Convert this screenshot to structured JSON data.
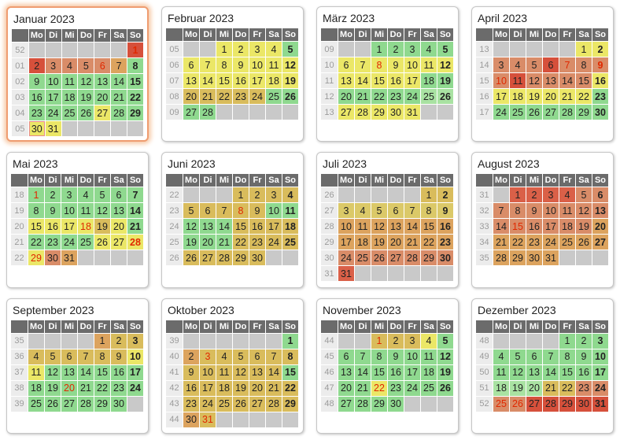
{
  "palette": {
    "g": "#8FD98F",
    "lg": "#A9E2A2",
    "y": "#EBE767",
    "yg": "#DBC968",
    "dy": "#D9BC5C",
    "o": "#DCA35E",
    "do": "#D98C68",
    "r2": "#DA6048",
    "r": "#D6503B",
    "empty_cell": "#C9C9C9",
    "header_bg": "#6B6B6B",
    "week_col_bg": "#ECECEC",
    "week_num_text": "#9B9B9B",
    "day_text": "#222222",
    "holiday_text": "#E02800",
    "highlight_border": "#EF9C70",
    "highlight_glow": "#F7CBA9",
    "today_border": "#E98A8A"
  },
  "day_headers": [
    "Mo",
    "Di",
    "Mi",
    "Do",
    "Fr",
    "Sa",
    "So"
  ],
  "months": [
    {
      "title": "Januar 2023",
      "highlight": true,
      "weeks": [
        {
          "num": "52",
          "days": [
            null,
            null,
            null,
            null,
            null,
            null,
            "1:r:h"
          ]
        },
        {
          "num": "01",
          "days": [
            "2:r",
            "3:do",
            "4:do",
            "5:do",
            "6:do:h",
            "7:o",
            "8:g"
          ]
        },
        {
          "num": "02",
          "days": [
            "9:g",
            "10:g",
            "11:g",
            "12:g",
            "13:g",
            "14:g",
            "15:g"
          ]
        },
        {
          "num": "03",
          "days": [
            "16:g",
            "17:g",
            "18:g",
            "19:g",
            "20:g",
            "21:g",
            "22:g"
          ]
        },
        {
          "num": "04",
          "days": [
            "23:g",
            "24:g",
            "25:g",
            "26:g",
            "27:y",
            "28:g",
            "29:g"
          ]
        },
        {
          "num": "05",
          "days": [
            "30:y:t",
            "31:y",
            null,
            null,
            null,
            null,
            null
          ]
        }
      ]
    },
    {
      "title": "Februar 2023",
      "highlight": false,
      "weeks": [
        {
          "num": "05",
          "days": [
            null,
            null,
            "1:y",
            "2:y",
            "3:y",
            "4:y",
            "5:g"
          ]
        },
        {
          "num": "06",
          "days": [
            "6:y",
            "7:y",
            "8:y",
            "9:y",
            "10:y",
            "11:y",
            "12:y"
          ]
        },
        {
          "num": "07",
          "days": [
            "13:y",
            "14:y",
            "15:y",
            "16:y",
            "17:y",
            "18:y",
            "19:y"
          ]
        },
        {
          "num": "08",
          "days": [
            "20:dy",
            "21:dy",
            "22:dy",
            "23:dy",
            "24:dy",
            "25:g",
            "26:g"
          ]
        },
        {
          "num": "09",
          "days": [
            "27:g",
            "28:g",
            null,
            null,
            null,
            null,
            null
          ]
        }
      ]
    },
    {
      "title": "März 2023",
      "highlight": false,
      "weeks": [
        {
          "num": "09",
          "days": [
            null,
            null,
            "1:g",
            "2:g",
            "3:g",
            "4:g",
            "5:g"
          ]
        },
        {
          "num": "10",
          "days": [
            "6:y",
            "7:y",
            "8:y:h",
            "9:y",
            "10:y",
            "11:y",
            "12:y"
          ]
        },
        {
          "num": "11",
          "days": [
            "13:y",
            "14:y",
            "15:y",
            "16:y",
            "17:y",
            "18:g",
            "19:g"
          ]
        },
        {
          "num": "12",
          "days": [
            "20:g",
            "21:g",
            "22:g",
            "23:g",
            "24:g",
            "25:lg",
            "26:lg"
          ]
        },
        {
          "num": "13",
          "days": [
            "27:y",
            "28:y",
            "29:y",
            "30:y",
            "31:y",
            null,
            null
          ]
        }
      ]
    },
    {
      "title": "April 2023",
      "highlight": false,
      "weeks": [
        {
          "num": "13",
          "days": [
            null,
            null,
            null,
            null,
            null,
            "1:y",
            "2:y"
          ]
        },
        {
          "num": "14",
          "days": [
            "3:do",
            "4:do",
            "5:do",
            "6:r",
            "7:do:h",
            "8:do",
            "9:do:h"
          ]
        },
        {
          "num": "15",
          "days": [
            "10:do:h",
            "11:r",
            "12:do",
            "13:do",
            "14:do",
            "15:do",
            "16:y"
          ]
        },
        {
          "num": "16",
          "days": [
            "17:y",
            "18:y",
            "19:y",
            "20:y",
            "21:y",
            "22:y",
            "23:g"
          ]
        },
        {
          "num": "17",
          "days": [
            "24:g",
            "25:g",
            "26:g",
            "27:g",
            "28:g",
            "29:g",
            "30:g"
          ]
        }
      ]
    },
    {
      "title": "Mai 2023",
      "highlight": false,
      "weeks": [
        {
          "num": "18",
          "days": [
            "1:g:h",
            "2:g",
            "3:g",
            "4:g",
            "5:g",
            "6:g",
            "7:g"
          ]
        },
        {
          "num": "19",
          "days": [
            "8:g",
            "9:g",
            "10:g",
            "11:g",
            "12:g",
            "13:g",
            "14:g"
          ]
        },
        {
          "num": "20",
          "days": [
            "15:y",
            "16:y",
            "17:y",
            "18:y:h",
            "19:dy",
            "20:y",
            "21:g"
          ]
        },
        {
          "num": "21",
          "days": [
            "22:g",
            "23:g",
            "24:g",
            "25:g",
            "26:y",
            "27:y",
            "28:y:h"
          ]
        },
        {
          "num": "22",
          "days": [
            "29:y:h",
            "30:do",
            "31:o",
            null,
            null,
            null,
            null
          ]
        }
      ]
    },
    {
      "title": "Juni 2023",
      "highlight": false,
      "weeks": [
        {
          "num": "22",
          "days": [
            null,
            null,
            null,
            "1:dy",
            "2:dy",
            "3:dy",
            "4:dy"
          ]
        },
        {
          "num": "23",
          "days": [
            "5:dy",
            "6:dy",
            "7:dy",
            "8:dy:h",
            "9:dy",
            "10:g",
            "11:g"
          ]
        },
        {
          "num": "24",
          "days": [
            "12:g",
            "13:g",
            "14:g",
            "15:dy",
            "16:dy",
            "17:dy",
            "18:dy"
          ]
        },
        {
          "num": "25",
          "days": [
            "19:g",
            "20:g",
            "21:g",
            "22:dy",
            "23:dy",
            "24:dy",
            "25:dy"
          ]
        },
        {
          "num": "26",
          "days": [
            "26:dy",
            "27:dy",
            "28:dy",
            "29:dy",
            "30:dy",
            null,
            null
          ]
        }
      ]
    },
    {
      "title": "Juli 2023",
      "highlight": false,
      "weeks": [
        {
          "num": "26",
          "days": [
            null,
            null,
            null,
            null,
            null,
            "1:dy",
            "2:dy"
          ]
        },
        {
          "num": "27",
          "days": [
            "3:yg",
            "4:yg",
            "5:yg",
            "6:yg",
            "7:yg",
            "8:yg",
            "9:yg"
          ]
        },
        {
          "num": "28",
          "days": [
            "10:o",
            "11:o",
            "12:o",
            "13:o",
            "14:o",
            "15:o",
            "16:o"
          ]
        },
        {
          "num": "29",
          "days": [
            "17:o",
            "18:o",
            "19:o",
            "20:o",
            "21:o",
            "22:o",
            "23:o"
          ]
        },
        {
          "num": "30",
          "days": [
            "24:do",
            "25:do",
            "26:do",
            "27:do",
            "28:do",
            "29:do",
            "30:do"
          ]
        },
        {
          "num": "31",
          "days": [
            "31:r2",
            null,
            null,
            null,
            null,
            null,
            null
          ]
        }
      ]
    },
    {
      "title": "August 2023",
      "highlight": false,
      "weeks": [
        {
          "num": "31",
          "days": [
            null,
            "1:r2",
            "2:r2",
            "3:r2",
            "4:r2",
            "5:do",
            "6:do"
          ]
        },
        {
          "num": "32",
          "days": [
            "7:do",
            "8:do",
            "9:do",
            "10:do",
            "11:do",
            "12:do",
            "13:do"
          ]
        },
        {
          "num": "33",
          "days": [
            "14:do",
            "15:do:h",
            "16:do",
            "17:do",
            "18:do",
            "19:do",
            "20:o"
          ]
        },
        {
          "num": "34",
          "days": [
            "21:o",
            "22:o",
            "23:o",
            "24:o",
            "25:o",
            "26:o",
            "27:o"
          ]
        },
        {
          "num": "35",
          "days": [
            "28:o",
            "29:o",
            "30:o",
            "31:o",
            null,
            null,
            null
          ]
        }
      ]
    },
    {
      "title": "September 2023",
      "highlight": false,
      "weeks": [
        {
          "num": "35",
          "days": [
            null,
            null,
            null,
            null,
            "1:o",
            "2:dy",
            "3:dy"
          ]
        },
        {
          "num": "36",
          "days": [
            "4:dy",
            "5:dy",
            "6:dy",
            "7:dy",
            "8:dy",
            "9:dy",
            "10:y"
          ]
        },
        {
          "num": "37",
          "days": [
            "11:y",
            "12:g",
            "13:g",
            "14:g",
            "15:g",
            "16:g",
            "17:g"
          ]
        },
        {
          "num": "38",
          "days": [
            "18:g",
            "19:g",
            "20:g:h",
            "21:g",
            "22:g",
            "23:g",
            "24:g"
          ]
        },
        {
          "num": "39",
          "days": [
            "25:g",
            "26:g",
            "27:g",
            "28:g",
            "29:g",
            "30:g",
            null
          ]
        }
      ]
    },
    {
      "title": "Oktober 2023",
      "highlight": false,
      "weeks": [
        {
          "num": "39",
          "days": [
            null,
            null,
            null,
            null,
            null,
            null,
            "1:g"
          ]
        },
        {
          "num": "40",
          "days": [
            "2:o",
            "3:dy:h",
            "4:dy",
            "5:dy",
            "6:dy",
            "7:dy",
            "8:dy"
          ]
        },
        {
          "num": "41",
          "days": [
            "9:dy",
            "10:dy",
            "11:dy",
            "12:dy",
            "13:dy",
            "14:dy",
            "15:g"
          ]
        },
        {
          "num": "42",
          "days": [
            "16:dy",
            "17:dy",
            "18:dy",
            "19:dy",
            "20:dy",
            "21:dy",
            "22:dy"
          ]
        },
        {
          "num": "43",
          "days": [
            "23:dy",
            "24:dy",
            "25:dy",
            "26:dy",
            "27:dy",
            "28:dy",
            "29:dy"
          ]
        },
        {
          "num": "44",
          "days": [
            "30:o",
            "31:dy:h",
            null,
            null,
            null,
            null,
            null
          ]
        }
      ]
    },
    {
      "title": "November 2023",
      "highlight": false,
      "weeks": [
        {
          "num": "44",
          "days": [
            null,
            null,
            "1:dy:h",
            "2:dy",
            "3:dy",
            "4:y",
            "5:g"
          ]
        },
        {
          "num": "45",
          "days": [
            "6:g",
            "7:g",
            "8:g",
            "9:g",
            "10:g",
            "11:g",
            "12:g"
          ]
        },
        {
          "num": "46",
          "days": [
            "13:g",
            "14:g",
            "15:g",
            "16:g",
            "17:g",
            "18:g",
            "19:g"
          ]
        },
        {
          "num": "47",
          "days": [
            "20:g",
            "21:g",
            "22:y:h",
            "23:g",
            "24:g",
            "25:g",
            "26:g"
          ]
        },
        {
          "num": "48",
          "days": [
            "27:g",
            "28:g",
            "29:g",
            "30:g",
            null,
            null,
            null
          ]
        }
      ]
    },
    {
      "title": "Dezember 2023",
      "highlight": false,
      "weeks": [
        {
          "num": "48",
          "days": [
            null,
            null,
            null,
            null,
            "1:g",
            "2:g",
            "3:g"
          ]
        },
        {
          "num": "49",
          "days": [
            "4:g",
            "5:g",
            "6:g",
            "7:g",
            "8:g",
            "9:g",
            "10:g"
          ]
        },
        {
          "num": "50",
          "days": [
            "11:g",
            "12:g",
            "13:g",
            "14:g",
            "15:g",
            "16:g",
            "17:g"
          ]
        },
        {
          "num": "51",
          "days": [
            "18:lg",
            "19:lg",
            "20:lg",
            "21:dy",
            "22:dy",
            "23:do",
            "24:do"
          ]
        },
        {
          "num": "52",
          "days": [
            "25:do:h",
            "26:do:h",
            "27:r",
            "28:r",
            "29:r",
            "30:r",
            "31:r"
          ]
        }
      ]
    }
  ]
}
